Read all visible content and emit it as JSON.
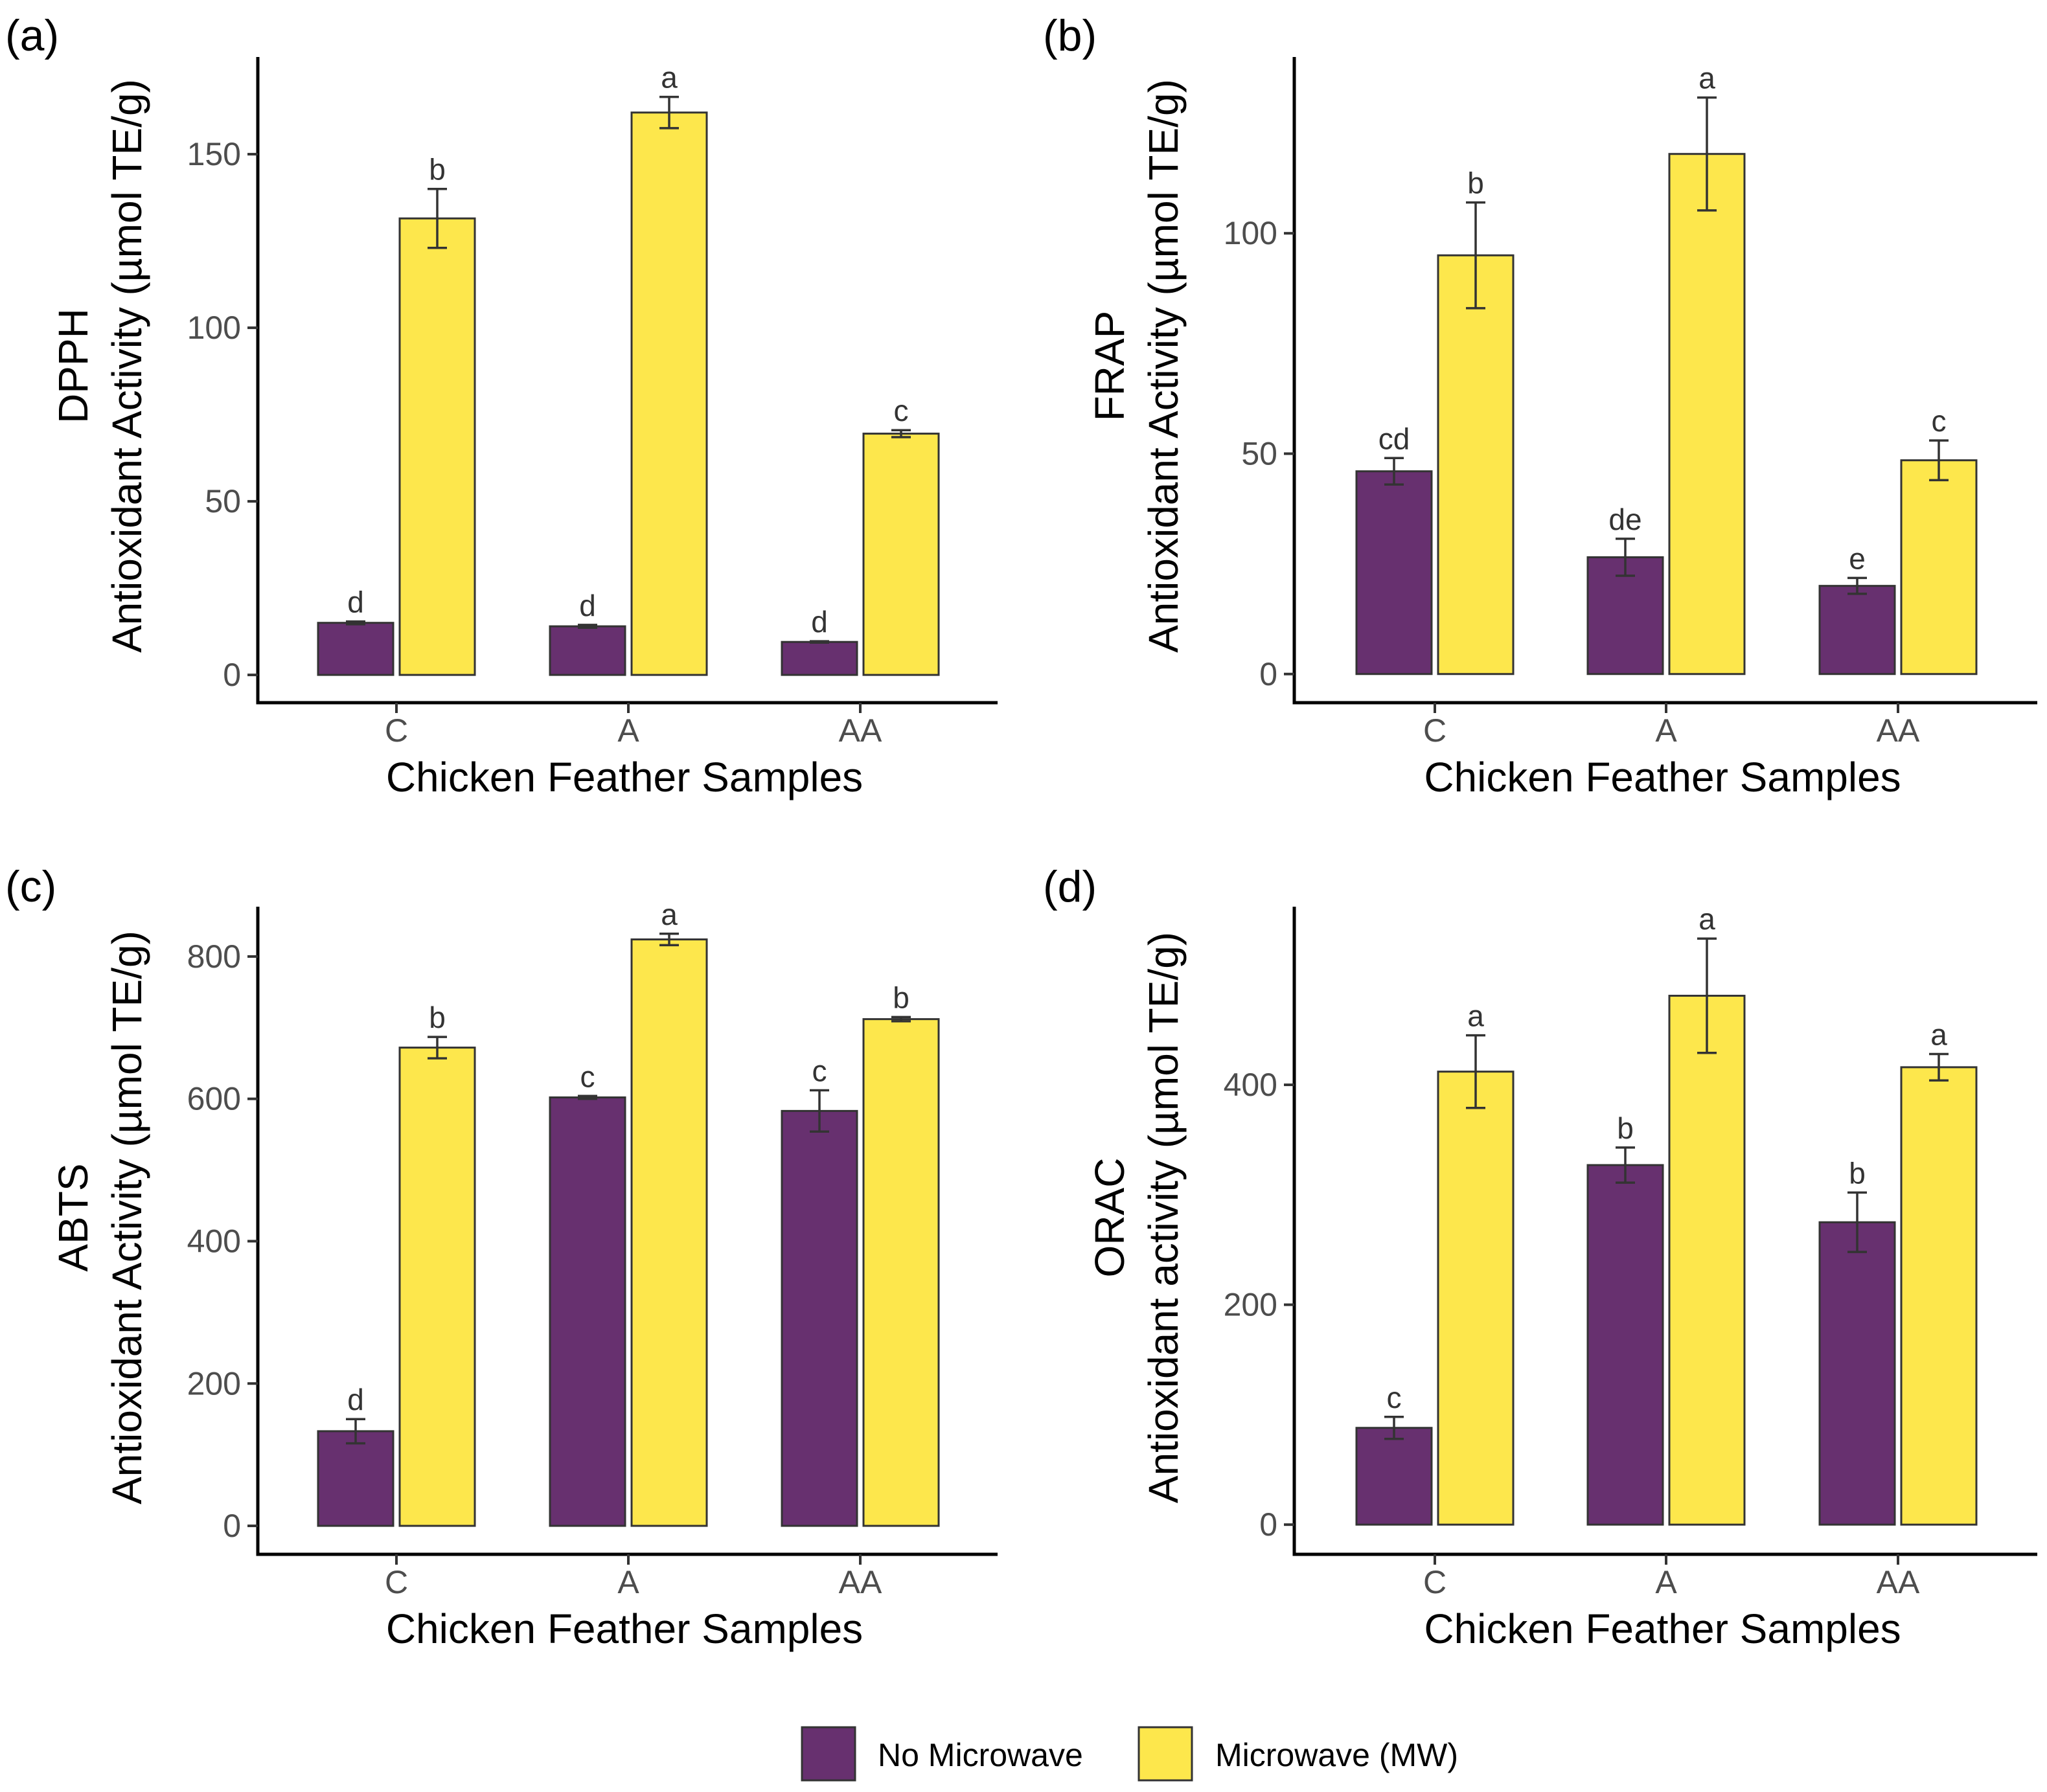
{
  "colors": {
    "no_microwave": "#67306f",
    "microwave": "#fde74c",
    "bar_outline": "#333333",
    "axis": "#000000",
    "tick_text": "#4d4d4d"
  },
  "legend": {
    "items": [
      {
        "name": "No Microwave",
        "color": "#67306f"
      },
      {
        "name": "Microwave (MW)",
        "color": "#fde74c"
      }
    ]
  },
  "chart_data": [
    {
      "type": "bar",
      "panel_label": "(a)",
      "ylabel_line1": "DPPH",
      "ylabel_line2": "Antioxidant Activity (µmol TE/g)",
      "xlabel": "Chicken Feather Samples",
      "categories": [
        "C",
        "A",
        "AA"
      ],
      "yticks": [
        0,
        50,
        100,
        150
      ],
      "ylim": [
        -8,
        178
      ],
      "series": [
        {
          "name": "No Microwave",
          "values": [
            15,
            14,
            9.5
          ],
          "errors": [
            0.4,
            0.4,
            0.2
          ],
          "letters": [
            "d",
            "d",
            "d"
          ]
        },
        {
          "name": "Microwave (MW)",
          "values": [
            131.5,
            162,
            69.5
          ],
          "errors": [
            8.5,
            4.5,
            1.0
          ],
          "letters": [
            "b",
            "a",
            "c"
          ]
        }
      ]
    },
    {
      "type": "bar",
      "panel_label": "(b)",
      "ylabel_line1": "FRAP",
      "ylabel_line2": "Antioxidant Activity (µmol TE/g)",
      "xlabel": "Chicken Feather Samples",
      "categories": [
        "C",
        "A",
        "AA"
      ],
      "yticks": [
        0,
        50,
        100
      ],
      "ylim": [
        -6.5,
        140
      ],
      "series": [
        {
          "name": "No Microwave",
          "values": [
            46,
            26.5,
            20
          ],
          "errors": [
            3.0,
            4.2,
            1.8
          ],
          "letters": [
            "cd",
            "de",
            "e"
          ]
        },
        {
          "name": "Microwave (MW)",
          "values": [
            95,
            118,
            48.5
          ],
          "errors": [
            12.0,
            12.8,
            4.5
          ],
          "letters": [
            "b",
            "a",
            "c"
          ]
        }
      ]
    },
    {
      "type": "bar",
      "panel_label": "(c)",
      "ylabel_line1": "ABTS",
      "ylabel_line2": "Antioxidant Activity (µmol TE/g)",
      "xlabel": "Chicken Feather Samples",
      "categories": [
        "C",
        "A",
        "AA"
      ],
      "yticks": [
        0,
        200,
        400,
        600,
        800
      ],
      "ylim": [
        -40,
        870
      ],
      "series": [
        {
          "name": "No Microwave",
          "values": [
            133,
            602,
            583
          ],
          "errors": [
            17,
            2,
            29
          ],
          "letters": [
            "d",
            "c",
            "c"
          ]
        },
        {
          "name": "Microwave (MW)",
          "values": [
            672,
            824,
            712
          ],
          "errors": [
            15,
            8,
            3
          ],
          "letters": [
            "b",
            "a",
            "b"
          ]
        }
      ]
    },
    {
      "type": "bar",
      "panel_label": "(d)",
      "ylabel_line1": "ORAC",
      "ylabel_line2": "Antioxidant activity (µmol TE/g)",
      "xlabel": "Chicken Feather Samples",
      "categories": [
        "C",
        "A",
        "AA"
      ],
      "yticks": [
        0,
        200,
        400
      ],
      "ylim": [
        -27,
        562
      ],
      "series": [
        {
          "name": "No Microwave",
          "values": [
            88,
            327,
            275
          ],
          "errors": [
            10,
            16,
            27
          ],
          "letters": [
            "c",
            "b",
            "b"
          ]
        },
        {
          "name": "Microwave (MW)",
          "values": [
            412,
            481,
            416
          ],
          "errors": [
            33,
            52,
            12
          ],
          "letters": [
            "a",
            "a",
            "a"
          ]
        }
      ]
    }
  ]
}
